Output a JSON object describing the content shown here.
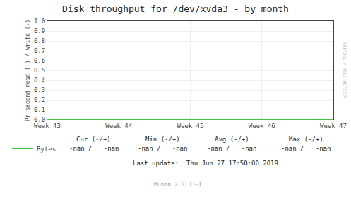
{
  "chart_data": {
    "type": "line",
    "title": "Disk throughput for /dev/xvda3 - by month",
    "y_label": "Pr second read (-) / write (+)",
    "categories": [
      "Week 43",
      "Week 44",
      "Week 45",
      "Week 46",
      "Week 47"
    ],
    "series": [
      {
        "name": "Bytes",
        "color": "#00aa00",
        "values": [
          0.0,
          0.0,
          0.0,
          0.0,
          0.0
        ]
      }
    ],
    "ylim": [
      0.0,
      1.0
    ],
    "yticks": [
      {
        "value": 0.0,
        "label": "0.0"
      },
      0.1,
      0.2,
      0.3,
      0.4,
      0.5,
      0.6,
      0.7,
      0.8,
      0.9,
      {
        "value": 1.0,
        "label": "1.0"
      }
    ],
    "grid": true,
    "annotations": [
      [
        "Cur (-/+)",
        "Min (-/+)",
        "Avg (-/+)",
        "Max (-/+)"
      ],
      [
        "-nan /   -nan",
        "-nan /   -nan",
        "-nan /   -nan",
        "-nan /   -nan"
      ],
      [
        "Last update:  Thu Jun 27 17:50:00 2019"
      ],
      [
        "Munin 2.0.33-1"
      ],
      [
        "RRDTOOL / TOBI OETIKER"
      ]
    ]
  }
}
